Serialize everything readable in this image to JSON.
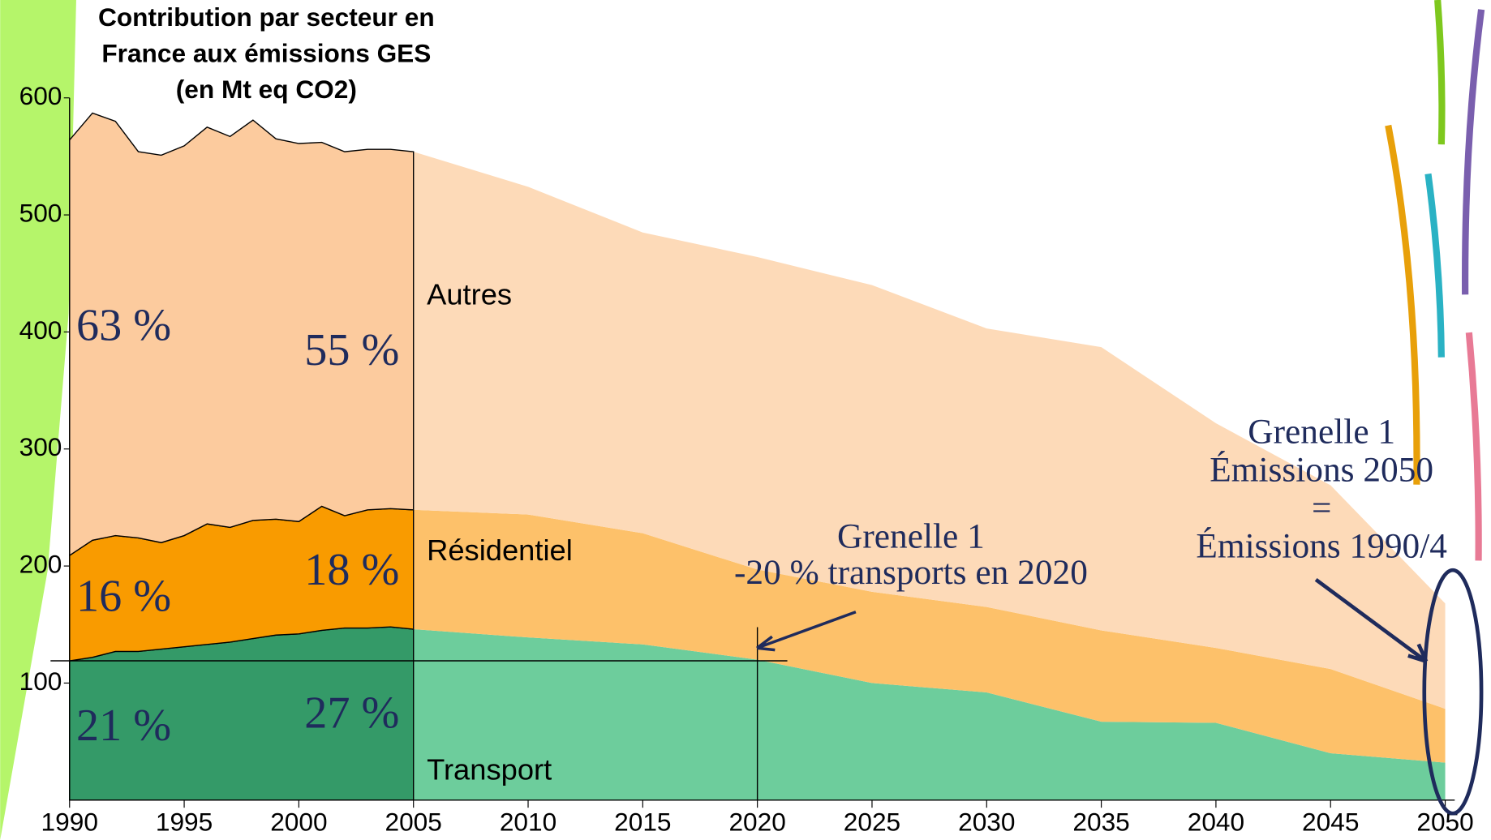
{
  "chart_data": {
    "type": "stacked_area",
    "title_lines": [
      "Contribution par secteur en",
      "France aux émissions GES",
      "(en Mt eq CO2)"
    ],
    "x": [
      1990,
      1991,
      1992,
      1993,
      1994,
      1995,
      1996,
      1997,
      1998,
      1999,
      2000,
      2001,
      2002,
      2003,
      2004,
      2005,
      2010,
      2015,
      2020,
      2025,
      2030,
      2035,
      2040,
      2045,
      2050
    ],
    "series": [
      {
        "name": "Transport",
        "color": "#349a68",
        "projection_color": "#6dcd9c",
        "values": [
          119,
          122,
          127,
          127,
          129,
          131,
          133,
          135,
          138,
          141,
          142,
          145,
          147,
          147,
          148,
          146,
          139,
          133,
          120,
          100,
          92,
          67,
          66,
          40,
          32
        ]
      },
      {
        "name": "Résidentiel",
        "color": "#f99b00",
        "projection_color": "#fdc16a",
        "values": [
          90,
          100,
          99,
          97,
          91,
          95,
          103,
          98,
          101,
          99,
          96,
          106,
          96,
          101,
          101,
          102,
          105,
          95,
          77,
          78,
          73,
          78,
          64,
          72,
          46
        ]
      },
      {
        "name": "Autres",
        "color": "#fccb9e",
        "projection_color": "#fddab8",
        "values": [
          355,
          365,
          354,
          330,
          331,
          333,
          339,
          334,
          342,
          325,
          323,
          311,
          311,
          308,
          307,
          306,
          280,
          257,
          267,
          262,
          238,
          242,
          192,
          157,
          90
        ]
      }
    ],
    "projection_from": 2005,
    "xlim": [
      1990,
      2050
    ],
    "xticks": [
      1990,
      1995,
      2000,
      2005,
      2010,
      2015,
      2020,
      2025,
      2030,
      2035,
      2040,
      2045,
      2050
    ],
    "ylim": [
      0,
      600
    ],
    "yticks": [
      100,
      200,
      300,
      400,
      500,
      600
    ],
    "reference_lines": {
      "x": 2020,
      "y": 119
    },
    "share_labels": [
      "63 %",
      "55 %",
      "16 %",
      "18 %",
      "21 %",
      "27 %"
    ],
    "annotations": [
      {
        "lines": [
          "Grenelle 1",
          "-20 % transports en 2020"
        ]
      },
      {
        "lines": [
          "Grenelle 1",
          "Émissions 2050",
          "=",
          "Émissions 1990/4"
        ]
      }
    ]
  }
}
